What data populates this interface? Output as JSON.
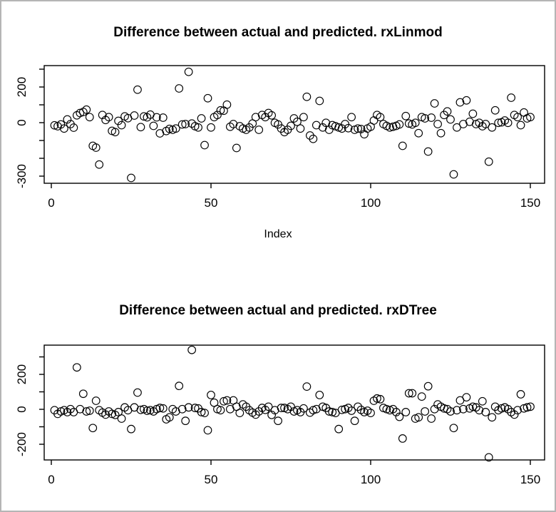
{
  "page": {
    "background_color": "#ffffff",
    "frame_border_color": "#b5b5b5",
    "ink_color": "#000000"
  },
  "chart_data": [
    {
      "type": "scatter",
      "title": "Difference between actual and predicted. rxLinmod",
      "xlabel": "Index",
      "ylabel": "",
      "marker": "open-circle",
      "point_color": "#000000",
      "grid": false,
      "legend": false,
      "xlim": [
        -2,
        155
      ],
      "ylim": [
        -330,
        310
      ],
      "x_ticks": [
        0,
        50,
        100,
        150
      ],
      "y_ticks": [
        300,
        200,
        100,
        0,
        -100,
        -200,
        -300
      ],
      "y_tick_labels": [
        200,
        0,
        -300
      ],
      "x_start": 1,
      "y": [
        -15,
        -20,
        -10,
        -33,
        18,
        -8,
        -28,
        41,
        54,
        60,
        73,
        31,
        -130,
        -140,
        -235,
        43,
        15,
        31,
        -46,
        -53,
        10,
        -14,
        35,
        25,
        -310,
        40,
        185,
        -25,
        35,
        30,
        45,
        -18,
        30,
        -60,
        28,
        -47,
        -35,
        -40,
        -33,
        192,
        -10,
        -8,
        285,
        -5,
        -20,
        -27,
        24,
        -126,
        137,
        -27,
        31,
        43,
        69,
        67,
        101,
        -23,
        -8,
        -142,
        -20,
        -33,
        -40,
        -27,
        -5,
        31,
        -40,
        43,
        31,
        54,
        41,
        -1,
        -10,
        -33,
        -53,
        -40,
        -18,
        24,
        5,
        -33,
        31,
        145,
        -72,
        -91,
        -14,
        122,
        -27,
        -1,
        -40,
        -14,
        -20,
        -27,
        -33,
        -8,
        -31,
        31,
        -40,
        -33,
        -36,
        -65,
        -33,
        -23,
        12,
        43,
        31,
        -8,
        -18,
        -27,
        -23,
        -18,
        -10,
        -130,
        37,
        -5,
        -10,
        -1,
        -59,
        31,
        24,
        -162,
        28,
        108,
        -8,
        -59,
        43,
        63,
        18,
        -290,
        -27,
        114,
        -8,
        125,
        5,
        50,
        -8,
        -1,
        -20,
        -8,
        -219,
        -27,
        69,
        -1,
        2,
        12,
        -1,
        140,
        43,
        31,
        -14,
        57,
        24,
        31
      ]
    },
    {
      "type": "scatter",
      "title": "Difference between actual and predicted. rxDTree",
      "xlabel": "",
      "ylabel": "",
      "marker": "open-circle",
      "point_color": "#000000",
      "grid": false,
      "legend": false,
      "xlim": [
        -2,
        155
      ],
      "ylim": [
        -300,
        360
      ],
      "x_ticks": [
        0,
        50,
        100,
        150
      ],
      "y_ticks": [
        300,
        200,
        100,
        0,
        -100,
        -200
      ],
      "y_tick_labels": [
        200,
        0,
        -200
      ],
      "x_start": 1,
      "y": [
        -5,
        -26,
        -12,
        -5,
        -16,
        1,
        -16,
        240,
        1,
        89,
        -12,
        -8,
        -107,
        49,
        -5,
        -19,
        -30,
        -12,
        -26,
        -32,
        -16,
        -53,
        11,
        -5,
        -113,
        11,
        96,
        -3,
        1,
        -8,
        -5,
        -12,
        1,
        8,
        5,
        -57,
        -46,
        1,
        -12,
        134,
        1,
        -66,
        11,
        340,
        8,
        5,
        -16,
        -21,
        -120,
        82,
        38,
        1,
        -5,
        46,
        51,
        1,
        51,
        15,
        -21,
        28,
        15,
        -5,
        -19,
        -30,
        -12,
        8,
        -3,
        15,
        -32,
        -5,
        -66,
        8,
        8,
        1,
        15,
        -12,
        -5,
        -16,
        5,
        130,
        -19,
        -5,
        1,
        82,
        15,
        8,
        -12,
        -16,
        -21,
        -113,
        -3,
        1,
        8,
        -8,
        -66,
        15,
        -3,
        -16,
        -8,
        -21,
        49,
        62,
        58,
        8,
        1,
        -5,
        1,
        -16,
        -43,
        -167,
        -16,
        92,
        92,
        -53,
        -46,
        73,
        -12,
        132,
        -53,
        1,
        28,
        15,
        5,
        1,
        -12,
        -107,
        -5,
        51,
        1,
        69,
        5,
        15,
        11,
        -5,
        46,
        -16,
        -275,
        -46,
        15,
        -5,
        5,
        11,
        1,
        -16,
        -30,
        -5,
        86,
        5,
        11,
        15
      ]
    }
  ]
}
